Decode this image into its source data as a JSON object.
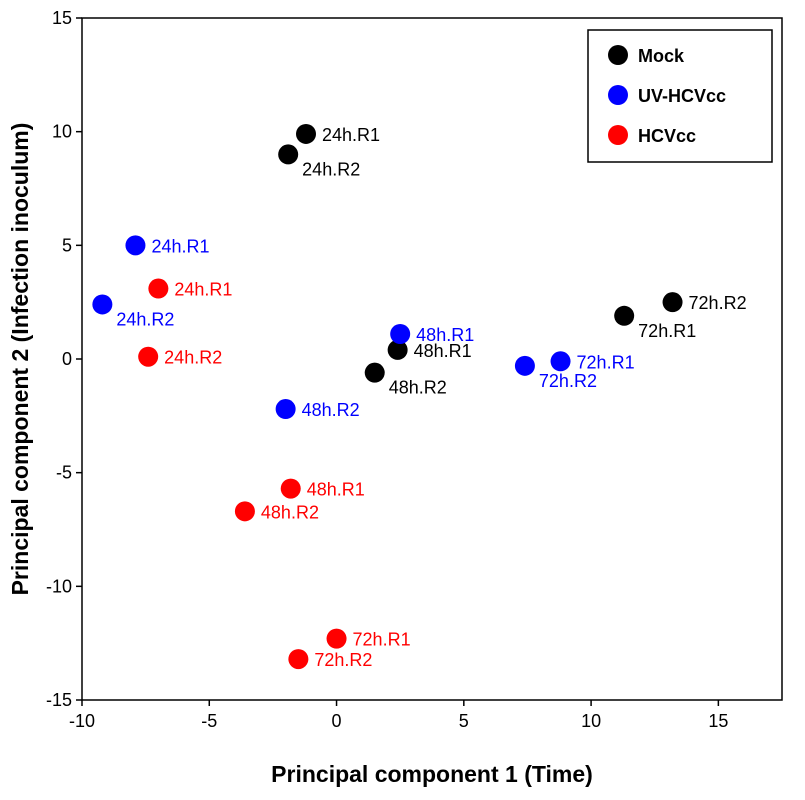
{
  "chart_data": {
    "type": "scatter",
    "xlabel": "Principal component 1 (Time)",
    "ylabel": "Principal component 2 (Infection inoculum)",
    "xlim": [
      -10,
      17.5
    ],
    "ylim": [
      -15,
      15
    ],
    "xticks": [
      -10,
      -5,
      0,
      5,
      10,
      15
    ],
    "yticks": [
      -15,
      -10,
      -5,
      0,
      5,
      10,
      15
    ],
    "xtick_labels": [
      "-10",
      "-5",
      "0",
      "5",
      "10",
      "15"
    ],
    "ytick_labels": [
      "-15",
      "-10",
      "-5",
      "0",
      "5",
      "10",
      "15"
    ],
    "legend_position": "top-right",
    "grid": false,
    "series": [
      {
        "name": "Mock",
        "color": "#000000",
        "points": [
          {
            "x": -1.2,
            "y": 9.9,
            "label": "24h.R1",
            "label_side": "right"
          },
          {
            "x": -1.9,
            "y": 9.0,
            "label": "24h.R2",
            "label_side": "below-right"
          },
          {
            "x": 2.4,
            "y": 0.4,
            "label": "48h.R1",
            "label_side": "right"
          },
          {
            "x": 1.5,
            "y": -0.6,
            "label": "48h.R2",
            "label_side": "below-right"
          },
          {
            "x": 11.3,
            "y": 1.9,
            "label": "72h.R1",
            "label_side": "below-right"
          },
          {
            "x": 13.2,
            "y": 2.5,
            "label": "72h.R2",
            "label_side": "right"
          }
        ]
      },
      {
        "name": "UV-HCVcc",
        "color": "#0000ff",
        "points": [
          {
            "x": -7.9,
            "y": 5.0,
            "label": "24h.R1",
            "label_side": "right"
          },
          {
            "x": -9.2,
            "y": 2.4,
            "label": "24h.R2",
            "label_side": "below-right"
          },
          {
            "x": 2.5,
            "y": 1.1,
            "label": "48h.R1",
            "label_side": "right"
          },
          {
            "x": -2.0,
            "y": -2.2,
            "label": "48h.R2",
            "label_side": "right"
          },
          {
            "x": 8.8,
            "y": -0.1,
            "label": "72h.R1",
            "label_side": "right"
          },
          {
            "x": 7.4,
            "y": -0.3,
            "label": "72h.R2",
            "label_side": "below-right"
          }
        ]
      },
      {
        "name": "HCVcc",
        "color": "#ff0000",
        "points": [
          {
            "x": -7.0,
            "y": 3.1,
            "label": "24h.R1",
            "label_side": "right"
          },
          {
            "x": -7.4,
            "y": 0.1,
            "label": "24h.R2",
            "label_side": "right"
          },
          {
            "x": -1.8,
            "y": -5.7,
            "label": "48h.R1",
            "label_side": "right"
          },
          {
            "x": -3.6,
            "y": -6.7,
            "label": "48h.R2",
            "label_side": "right"
          },
          {
            "x": 0.0,
            "y": -12.3,
            "label": "72h.R1",
            "label_side": "right"
          },
          {
            "x": -1.5,
            "y": -13.2,
            "label": "72h.R2",
            "label_side": "right"
          }
        ]
      }
    ]
  }
}
